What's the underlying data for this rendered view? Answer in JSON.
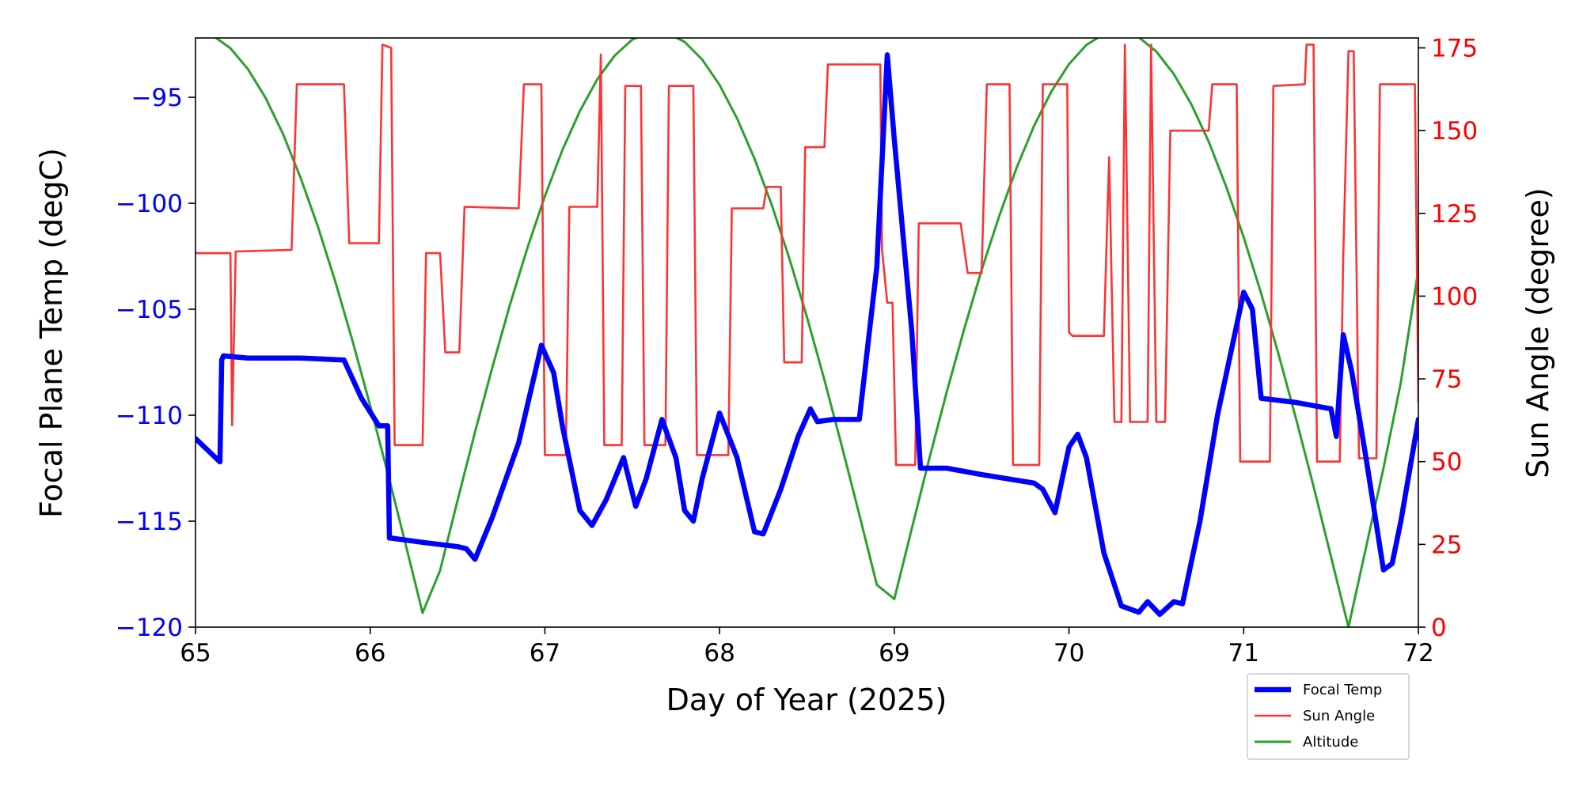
{
  "chart_data": {
    "type": "line",
    "xlabel": "Day of Year (2025)",
    "ylabel_left": "Focal Plane Temp (degC)",
    "ylabel_right": "Sun Angle (degree)",
    "xlim": [
      65,
      72
    ],
    "ylim_left": [
      -120,
      -92.2
    ],
    "ylim_right": [
      0,
      178
    ],
    "x_ticks": [
      65,
      66,
      67,
      68,
      69,
      70,
      71,
      72
    ],
    "y_ticks_left": [
      -95,
      -100,
      -105,
      -110,
      -115,
      -120
    ],
    "y_ticks_right": [
      0,
      25,
      50,
      75,
      100,
      125,
      150,
      175
    ],
    "grid": false,
    "legend_position": "below-right",
    "colors": {
      "left_axis": "#0000ff",
      "right_axis": "#ff0000",
      "focal": "#0000ff",
      "sun": "#ff3333",
      "altitude": "#2ca02c"
    },
    "series": [
      {
        "name": "Focal Temp",
        "axis": "left",
        "x": [
          65.0,
          65.14,
          65.15,
          65.16,
          65.3,
          65.6,
          65.85,
          65.95,
          66.05,
          66.1,
          66.11,
          66.12,
          66.3,
          66.5,
          66.55,
          66.6,
          66.7,
          66.85,
          66.98,
          67.05,
          67.1,
          67.2,
          67.27,
          67.35,
          67.45,
          67.52,
          67.58,
          67.67,
          67.75,
          67.8,
          67.85,
          67.9,
          68.0,
          68.1,
          68.2,
          68.25,
          68.35,
          68.45,
          68.52,
          68.56,
          68.65,
          68.8,
          68.9,
          68.96,
          69.0,
          69.1,
          69.15,
          69.3,
          69.5,
          69.8,
          69.85,
          69.92,
          70.0,
          70.05,
          70.1,
          70.2,
          70.3,
          70.4,
          70.45,
          70.52,
          70.6,
          70.65,
          70.75,
          70.85,
          71.0,
          71.05,
          71.1,
          71.3,
          71.5,
          71.53,
          71.57,
          71.62,
          71.7,
          71.8,
          71.85,
          71.9,
          72.0
        ],
        "values": [
          -111.1,
          -112.2,
          -107.4,
          -107.2,
          -107.3,
          -107.3,
          -107.4,
          -109.2,
          -110.5,
          -110.5,
          -115.8,
          -115.8,
          -116.0,
          -116.2,
          -116.3,
          -116.8,
          -114.8,
          -111.3,
          -106.7,
          -108.0,
          -110.5,
          -114.5,
          -115.2,
          -114.0,
          -112.0,
          -114.3,
          -113.0,
          -110.2,
          -112.0,
          -114.5,
          -115.0,
          -113.0,
          -109.9,
          -112.0,
          -115.5,
          -115.6,
          -113.5,
          -111.0,
          -109.7,
          -110.3,
          -110.2,
          -110.2,
          -103.0,
          -93.0,
          -97.0,
          -106.0,
          -112.5,
          -112.5,
          -112.8,
          -113.2,
          -113.5,
          -114.6,
          -111.5,
          -110.9,
          -112.0,
          -116.5,
          -119.0,
          -119.3,
          -118.8,
          -119.4,
          -118.8,
          -118.9,
          -115.0,
          -110.0,
          -104.2,
          -105.0,
          -109.2,
          -109.4,
          -109.7,
          -111.0,
          -106.2,
          -108.0,
          -112.0,
          -117.3,
          -117.0,
          -115.0,
          -110.2
        ]
      },
      {
        "name": "Sun Angle",
        "axis": "right",
        "x": [
          65.0,
          65.2,
          65.21,
          65.23,
          65.55,
          65.58,
          65.85,
          65.88,
          66.05,
          66.07,
          66.12,
          66.14,
          66.3,
          66.32,
          66.4,
          66.43,
          66.51,
          66.54,
          66.85,
          66.88,
          66.98,
          67.0,
          67.12,
          67.14,
          67.3,
          67.32,
          67.34,
          67.44,
          67.46,
          67.55,
          67.57,
          67.69,
          67.71,
          67.85,
          67.87,
          68.05,
          68.07,
          68.25,
          68.27,
          68.35,
          68.37,
          68.47,
          68.49,
          68.6,
          68.62,
          68.92,
          68.93,
          68.96,
          68.99,
          69.01,
          69.12,
          69.14,
          69.38,
          69.42,
          69.5,
          69.53,
          69.66,
          69.68,
          69.83,
          69.85,
          69.99,
          70.0,
          70.02,
          70.2,
          70.23,
          70.26,
          70.3,
          70.32,
          70.35,
          70.45,
          70.47,
          70.5,
          70.55,
          70.58,
          70.8,
          70.82,
          70.96,
          70.98,
          71.15,
          71.17,
          71.35,
          71.36,
          71.4,
          71.42,
          71.55,
          71.57,
          71.6,
          71.63,
          71.66,
          71.76,
          71.78,
          71.98,
          72.0
        ],
        "values": [
          113,
          113,
          61,
          113.5,
          114,
          164,
          164,
          116,
          116,
          176,
          175,
          55,
          55,
          113,
          113,
          83,
          83,
          127,
          126.5,
          164,
          164,
          52,
          52,
          127,
          127,
          173,
          55,
          55,
          163.5,
          163.5,
          55,
          55,
          163.5,
          163.5,
          52,
          52,
          126.5,
          126.5,
          133,
          133,
          80,
          80,
          145,
          145,
          170,
          170,
          114,
          98,
          98,
          49,
          49,
          122,
          122,
          107,
          107,
          164,
          164,
          49,
          49,
          164,
          164,
          89,
          88,
          88,
          142,
          62,
          62,
          176,
          62,
          62,
          176,
          62,
          62,
          150,
          150,
          164,
          164,
          50,
          50,
          163.5,
          164,
          176,
          176,
          50,
          50,
          112,
          174,
          174,
          51,
          51,
          164,
          164,
          68
        ]
      },
      {
        "name": "Altitude",
        "axis": "right",
        "x_start": 65.0,
        "x_step": 0.1,
        "values": [
          180,
          178.7,
          174.9,
          168.6,
          160.0,
          149.1,
          136.0,
          121.1,
          104.4,
          86.3,
          66.9,
          46.6,
          25.6,
          4.3,
          17.1,
          38.3,
          58.9,
          78.6,
          97.4,
          114.6,
          130.2,
          144.1,
          155.9,
          165.5,
          172.7,
          177.5,
          179.8,
          179.5,
          176.8,
          171.5,
          163.8,
          153.7,
          141.5,
          127.3,
          111.3,
          93.7,
          74.7,
          54.7,
          34.0,
          12.8,
          8.5,
          29.7,
          50.8,
          71.0,
          90.0,
          107.9,
          124.1,
          138.8,
          151.4,
          161.9,
          170.1,
          175.9,
          179.2,
          179.9,
          178.2,
          173.9,
          167.1,
          158.0,
          146.7,
          133.1,
          117.8,
          100.8,
          82.4,
          62.9,
          42.5,
          21.3,
          0,
          24,
          48,
          74,
          108
        ]
      }
    ]
  }
}
